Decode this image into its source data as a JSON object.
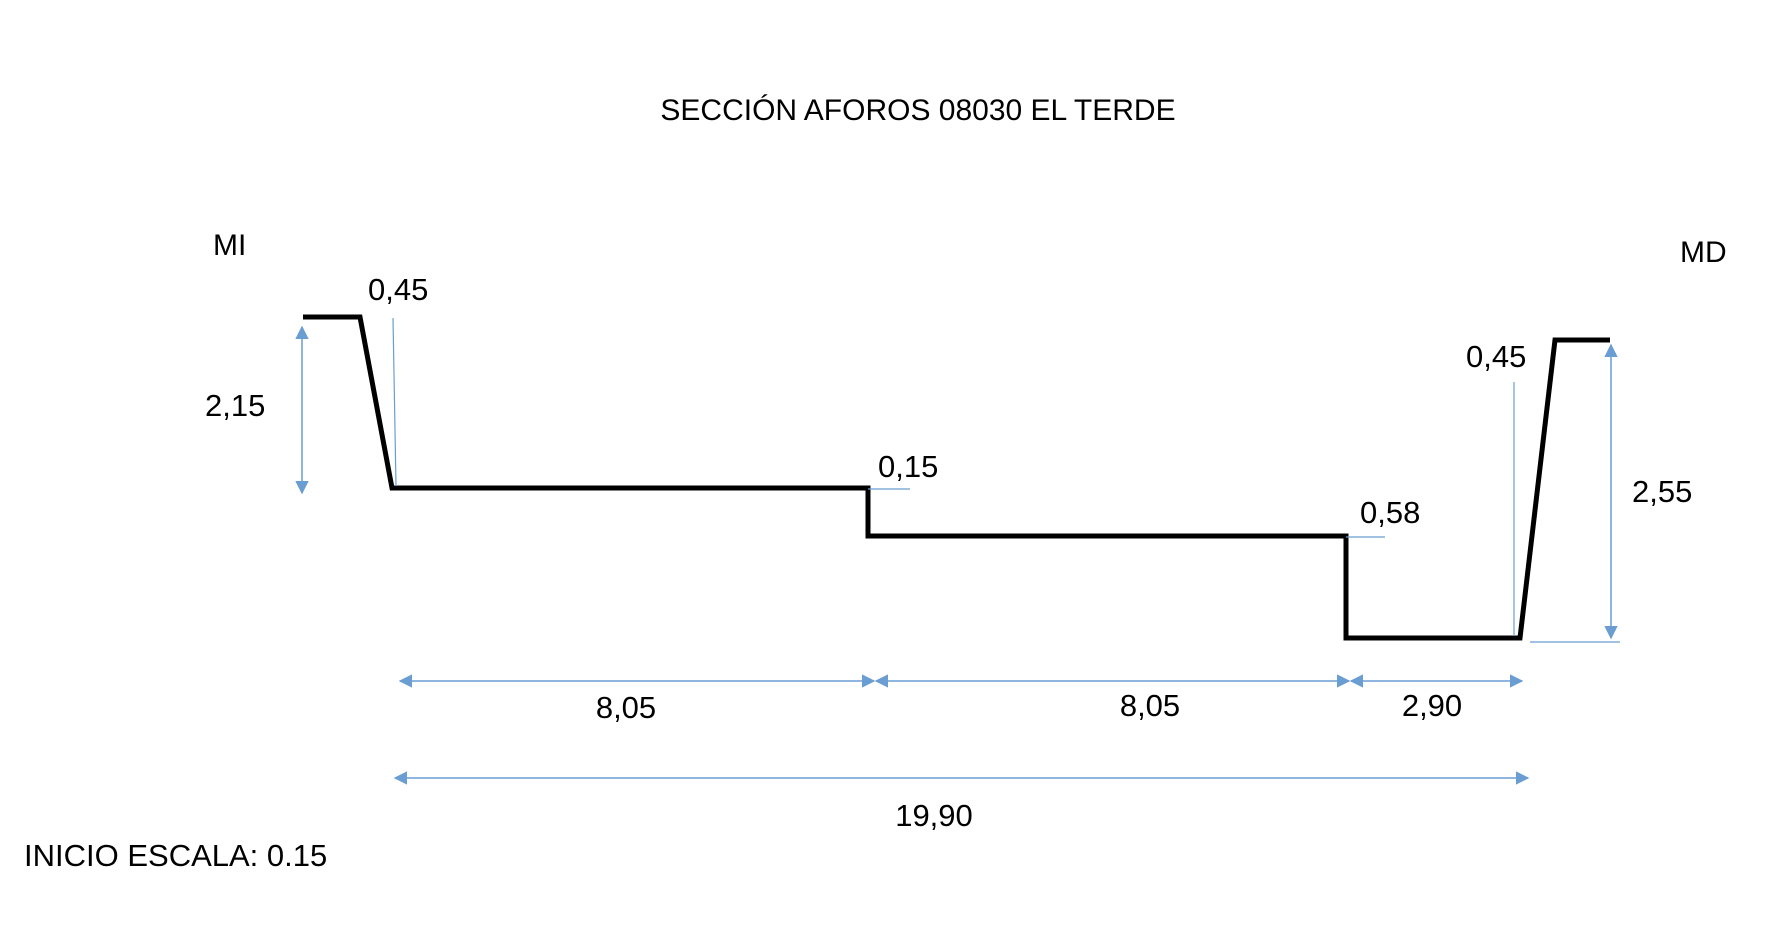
{
  "title": "SECCIÓN AFOROS 08030 EL TERDE",
  "banks": {
    "left": "MI",
    "right": "MD"
  },
  "dimensions": {
    "left_slope_width": "0,45",
    "left_bank_height": "2,15",
    "first_step": "0,15",
    "second_step": "0,58",
    "right_slope_width": "0,45",
    "right_bank_height": "2,55",
    "segment_1": "8,05",
    "segment_2": "8,05",
    "segment_3": "2,90",
    "total_width": "19,90"
  },
  "footer_note": "INICIO ESCALA: 0.15",
  "colors": {
    "profile": "#000000",
    "dimension_lines": "#6a9ed3",
    "text": "#000000"
  }
}
